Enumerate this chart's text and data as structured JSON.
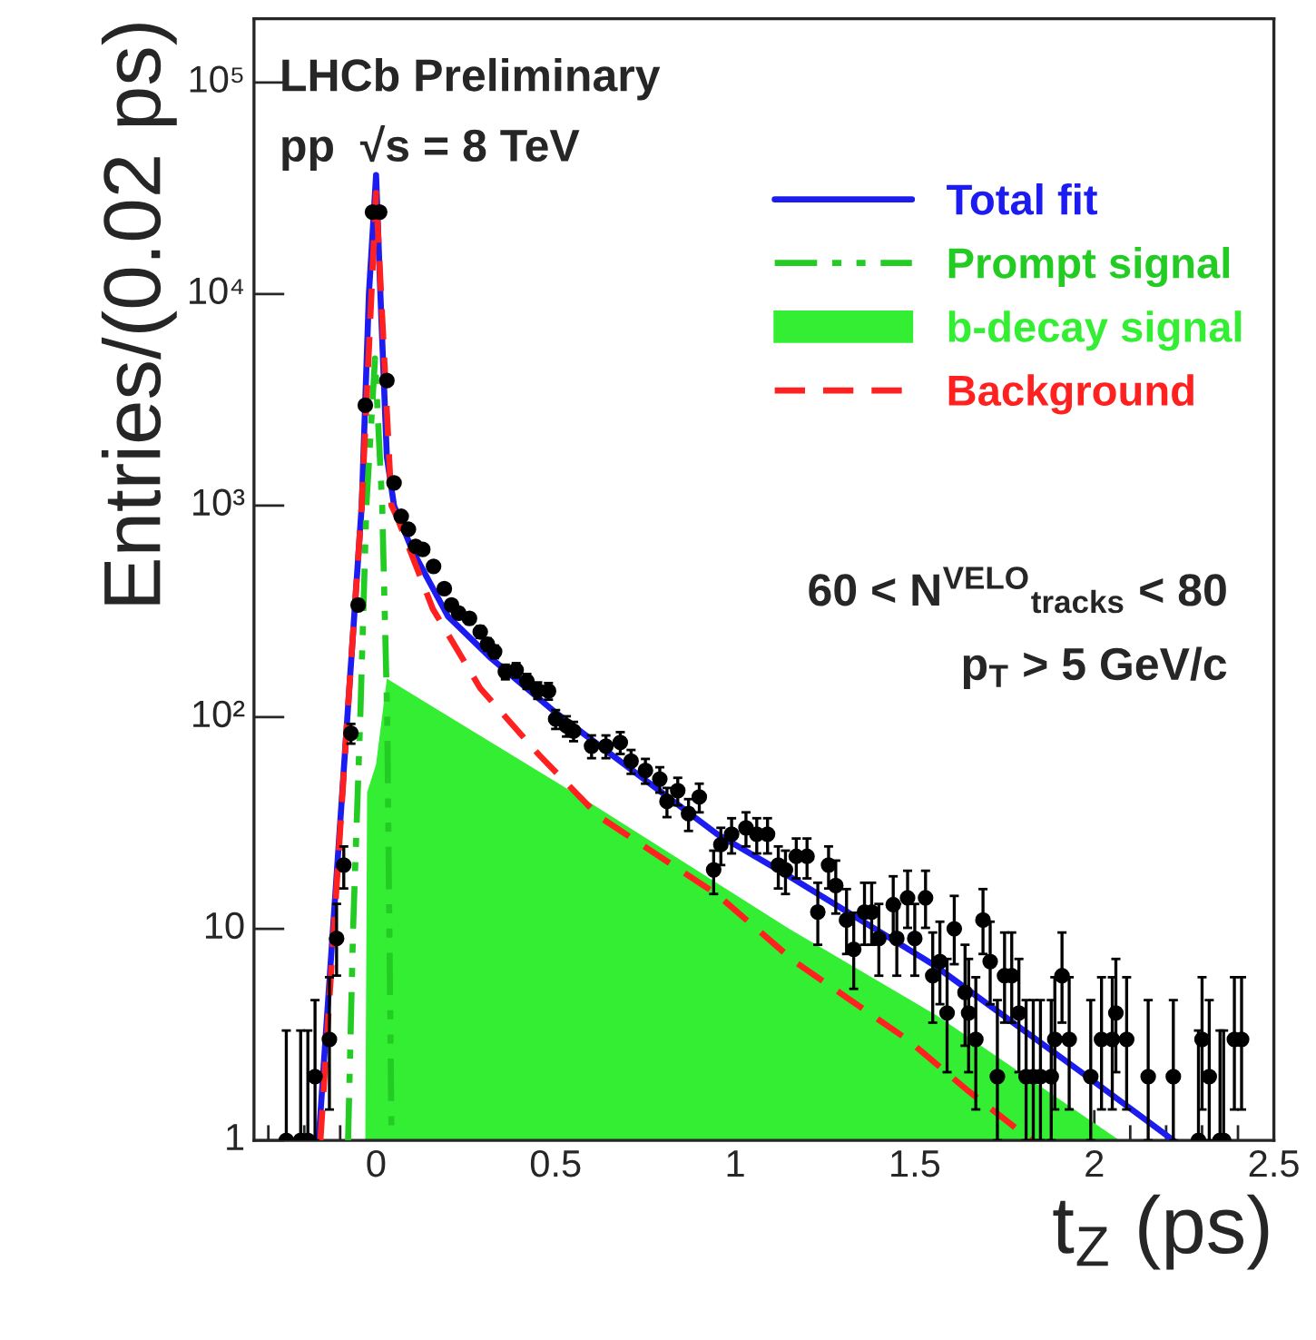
{
  "chart_data": {
    "type": "line",
    "xlabel": "t$_{Z}$ (ps)",
    "ylabel": "Entries/(0.02 ps)",
    "log": "y",
    "xlim": [
      -0.34,
      2.5
    ],
    "ylim": [
      1,
      200000
    ],
    "xticks": [
      0,
      0.5,
      1,
      1.5,
      2,
      2.5
    ],
    "yticks": [
      1,
      10,
      {
        "value": 100,
        "label": "10²"
      },
      {
        "value": 1000,
        "label": "10³"
      },
      {
        "value": 10000,
        "label": "10⁴"
      },
      {
        "value": 100000,
        "label": "10⁵"
      }
    ],
    "legend": "top right",
    "annotations": [
      "LHCb Preliminary",
      "pp  √s = 8 TeV",
      "60 < N$^{VELO}$$_{tracks}$ < 80",
      "p$_{T}$ > 5 GeV/c"
    ],
    "series": [
      {
        "name": "Total fit",
        "line_style": "solid",
        "color": "#1c1cf0",
        "x": [
          -0.16,
          -0.12,
          -0.08,
          -0.04,
          -0.02,
          0.0,
          0.012,
          0.03,
          0.05,
          0.1,
          0.2,
          0.32,
          0.5,
          0.95,
          1.15,
          1.55,
          1.97,
          2.22
        ],
        "values": [
          1,
          10,
          100,
          1000,
          10000,
          36500,
          10000,
          1700,
          1000,
          620,
          300,
          190,
          105,
          28,
          17.7,
          6.8,
          2.06,
          1
        ]
      },
      {
        "name": "Prompt signal",
        "type": "line",
        "line_style": "dashdot",
        "color": "#22cc22",
        "x": [
          -0.078,
          -0.064,
          -0.044,
          -0.027,
          -0.003,
          0.017,
          0.031,
          0.043
        ],
        "values": [
          1,
          10,
          100,
          1000,
          4960,
          1000,
          100,
          1
        ]
      },
      {
        "name": "b-decay signal",
        "type": "area",
        "color": "#33ee33",
        "x": [
          -0.03,
          -0.025,
          0.0,
          0.03,
          0.59,
          1.15,
          1.56,
          2.07
        ],
        "values": [
          1,
          44,
          60,
          152,
          40,
          10,
          3.9,
          1
        ]
      },
      {
        "name": "Background",
        "type": "line",
        "line_style": "dashed",
        "color": "#ff2020",
        "x": [
          -0.155,
          -0.08,
          -0.04,
          0.0,
          0.043,
          0.059,
          0.158,
          0.29,
          0.455,
          0.62,
          0.95,
          1.165,
          1.313,
          1.479,
          1.644,
          1.825
        ],
        "values": [
          1,
          100,
          1000,
          30000,
          1000,
          877,
          325,
          137,
          66,
          34,
          14.5,
          7,
          4.7,
          3,
          1.74,
          1
        ]
      },
      {
        "type": "scatter",
        "color": "#000000",
        "x": [
          -0.25,
          -0.21,
          -0.19,
          -0.17,
          -0.13,
          -0.11,
          -0.09,
          -0.07,
          -0.05,
          -0.03,
          -0.01,
          0.01,
          0.03,
          0.05,
          0.07,
          0.09,
          0.11,
          0.13,
          0.16,
          0.19,
          0.21,
          0.23,
          0.26,
          0.29,
          0.31,
          0.33,
          0.36,
          0.39,
          0.42,
          0.45,
          0.48,
          0.5,
          0.53,
          0.55,
          0.6,
          0.64,
          0.68,
          0.71,
          0.75,
          0.79,
          0.81,
          0.84,
          0.87,
          0.9,
          0.94,
          0.96,
          0.99,
          1.03,
          1.06,
          1.09,
          1.12,
          1.14,
          1.17,
          1.2,
          1.23,
          1.26,
          1.28,
          1.31,
          1.33,
          1.36,
          1.38,
          1.4,
          1.44,
          1.45,
          1.48,
          1.5,
          1.53,
          1.55,
          1.57,
          1.59,
          1.61,
          1.64,
          1.65,
          1.67,
          1.69,
          1.71,
          1.73,
          1.75,
          1.77,
          1.79,
          1.81,
          1.83,
          1.85,
          1.88,
          1.89,
          1.91,
          1.93,
          1.99,
          2.02,
          2.05,
          2.06,
          2.09,
          2.15,
          2.22,
          2.29,
          2.3,
          2.32,
          2.35,
          2.36,
          2.39,
          2.41
        ],
        "values": [
          1,
          1,
          1,
          2,
          3,
          9,
          20,
          84,
          339,
          2980,
          24400,
          24400,
          3900,
          1280,
          890,
          773,
          642,
          621,
          516,
          405,
          339,
          310,
          293,
          253,
          221,
          204,
          164,
          167,
          148,
          134,
          133,
          98,
          91,
          86,
          73,
          73,
          76,
          62,
          56,
          51,
          40,
          45,
          35,
          42,
          19,
          25,
          28,
          30,
          28,
          28,
          20,
          19,
          22,
          22,
          12,
          20,
          16,
          11,
          8,
          12,
          12,
          9,
          13,
          9,
          14,
          9,
          14,
          6,
          7,
          4,
          10,
          5,
          4,
          3,
          11,
          7,
          2,
          6,
          6,
          4,
          2,
          2,
          2,
          2,
          3,
          6,
          3,
          2,
          3,
          3,
          4,
          3,
          2,
          2,
          1,
          3,
          2,
          1,
          1,
          3,
          3
        ],
        "errors": [
          [
            1,
            3.3
          ],
          [
            1,
            3.3
          ],
          [
            1,
            3.3
          ],
          [
            1,
            4.6
          ],
          [
            1.4,
            5.9
          ],
          [
            6.0,
            13.1
          ],
          4.5,
          9,
          18,
          null,
          null,
          null,
          null,
          36,
          30,
          28,
          25,
          25,
          23,
          20,
          18,
          18,
          17,
          16,
          15,
          14,
          13,
          13,
          12,
          12,
          12,
          10,
          10,
          9,
          9,
          9,
          9,
          8,
          7.5,
          7,
          6.3,
          6.7,
          6,
          6.5,
          4.4,
          5,
          5.3,
          5.5,
          5.3,
          5.3,
          4.5,
          4.4,
          4.7,
          4.7,
          [
            8.4,
            16.5
          ],
          4.5,
          [
            11.8,
            21.0
          ],
          [
            7.6,
            15.4
          ],
          [
            5.2,
            11.9
          ],
          [
            8.4,
            16.5
          ],
          [
            8.4,
            16.5
          ],
          [
            6.0,
            13.1
          ],
          [
            9.3,
            17.7
          ],
          [
            6.0,
            13.1
          ],
          [
            10.1,
            18.8
          ],
          [
            6.0,
            13.1
          ],
          [
            10.1,
            18.8
          ],
          [
            3.6,
            9.6
          ],
          [
            4.4,
            10.8
          ],
          [
            2.1,
            7.2
          ],
          [
            6.8,
            14.3
          ],
          [
            2.8,
            8.4
          ],
          [
            2.1,
            7.2
          ],
          [
            1.4,
            5.9
          ],
          [
            7.6,
            15.4
          ],
          [
            4.4,
            10.8
          ],
          [
            1,
            4.6
          ],
          [
            3.6,
            9.6
          ],
          [
            3.6,
            9.6
          ],
          [
            2.1,
            7.2
          ],
          [
            1,
            4.6
          ],
          [
            1,
            4.6
          ],
          [
            1,
            4.6
          ],
          [
            1,
            4.6
          ],
          [
            1.4,
            5.9
          ],
          [
            3.6,
            9.6
          ],
          [
            1.4,
            5.9
          ],
          [
            1,
            4.6
          ],
          [
            1.4,
            5.9
          ],
          [
            1.4,
            5.9
          ],
          [
            2.1,
            7.2
          ],
          [
            1.4,
            5.9
          ],
          [
            1,
            4.6
          ],
          [
            1,
            4.6
          ],
          [
            1,
            3.3
          ],
          [
            1.4,
            5.9
          ],
          [
            1,
            4.6
          ],
          [
            1,
            3.3
          ],
          [
            1,
            3.3
          ],
          [
            1.4,
            5.9
          ],
          [
            1.4,
            5.9
          ]
        ]
      }
    ]
  }
}
